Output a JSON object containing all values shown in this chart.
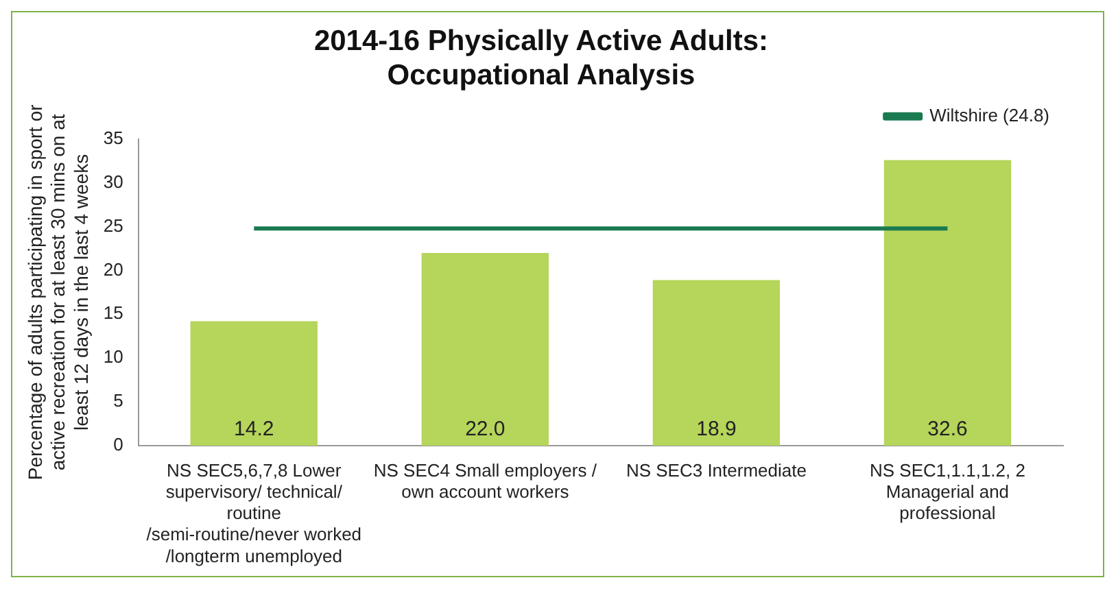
{
  "chart_data": {
    "type": "bar",
    "title": "2014-16 Physically Active Adults: Occupational Analysis",
    "ylabel": "Percentage of adults participating in sport or active recreation for at least 30 mins on at least 12 days in the last 4 weeks",
    "categories": [
      "NS SEC5,6,7,8 Lower supervisory/ technical/ routine /semi-routine/never worked /longterm unemployed",
      "NS SEC4 Small employers / own account workers",
      "NS SEC3 Intermediate",
      "NS SEC1,1.1,1.2, 2 Managerial and professional"
    ],
    "series": [
      {
        "color": "#b5d55b",
        "values": [
          14.2,
          22.0,
          18.9,
          32.6
        ],
        "value_labels": [
          "14.2",
          "22.0",
          "18.9",
          "32.6"
        ]
      },
      {
        "type": "line",
        "name": "Wiltshire (24.8)",
        "color": "#1a7a4f",
        "values": [
          24.8,
          24.8,
          24.8,
          24.8
        ],
        "marker": "none"
      }
    ],
    "ylim": [
      0,
      35
    ],
    "yticks": [
      0,
      5,
      10,
      15,
      20,
      25,
      30,
      35
    ],
    "grid": false,
    "legend": "top right"
  }
}
